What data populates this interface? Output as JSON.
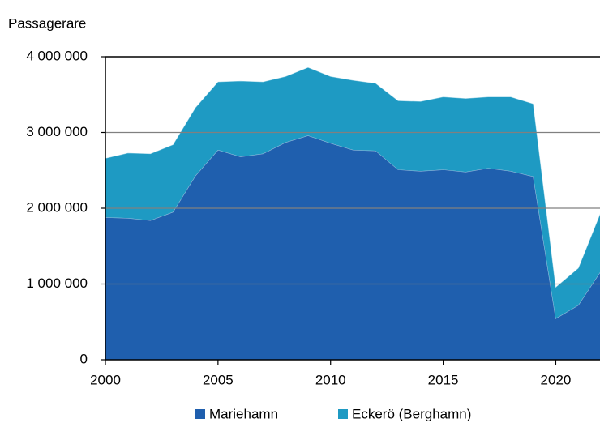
{
  "chart_data": {
    "type": "stacked_area",
    "y_axis_label": "Passagerare",
    "x": [
      2000,
      2001,
      2002,
      2003,
      2004,
      2005,
      2006,
      2007,
      2008,
      2009,
      2010,
      2011,
      2012,
      2013,
      2014,
      2015,
      2016,
      2017,
      2018,
      2019,
      2020,
      2021,
      2022
    ],
    "series": [
      {
        "name": "Mariehamn",
        "color": "#1f5fae",
        "values": [
          1880000,
          1870000,
          1840000,
          1950000,
          2430000,
          2770000,
          2680000,
          2720000,
          2870000,
          2960000,
          2860000,
          2770000,
          2760000,
          2510000,
          2490000,
          2510000,
          2480000,
          2530000,
          2490000,
          2420000,
          545000,
          720000,
          1170000
        ]
      },
      {
        "name": "Eckerö (Berghamn)",
        "color": "#1e9ac3",
        "values": [
          780000,
          860000,
          880000,
          890000,
          900000,
          900000,
          1000000,
          950000,
          870000,
          900000,
          880000,
          920000,
          890000,
          910000,
          920000,
          960000,
          970000,
          940000,
          980000,
          960000,
          415000,
          490000,
          780000
        ]
      }
    ],
    "xlim": [
      2000,
      2022
    ],
    "xticks": [
      2000,
      2005,
      2010,
      2015,
      2020
    ],
    "ylim": [
      0,
      4000000
    ],
    "yticks": [
      0,
      {
        "value": 1000000,
        "label": "1 000 000"
      },
      {
        "value": 2000000,
        "label": "2 000 000"
      },
      {
        "value": 3000000,
        "label": "3 000 000"
      },
      {
        "value": 4000000,
        "label": "4 000 000"
      }
    ],
    "grid": true,
    "legend": "bottom"
  }
}
